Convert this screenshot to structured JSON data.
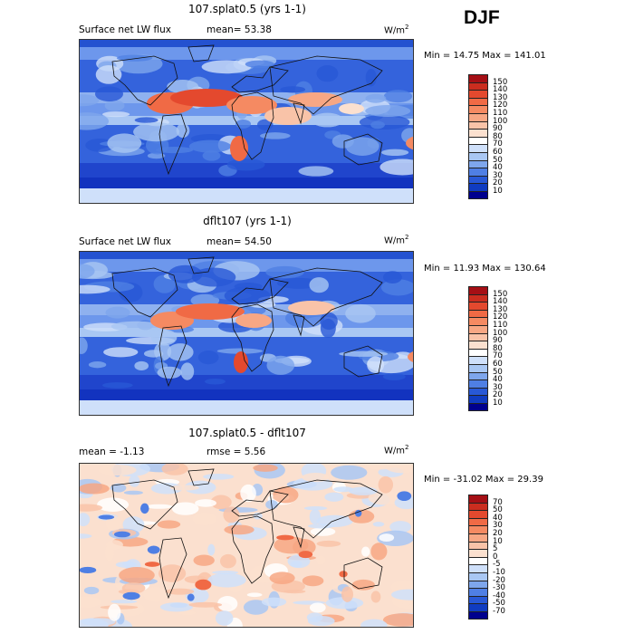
{
  "season": "DJF",
  "panels": [
    {
      "title": "107.splat0.5 (yrs 1-1)",
      "subtitle_left": "Surface net LW flux",
      "subtitle_right": "mean=  53.38",
      "units": "W/m",
      "units_exp": "2",
      "minmax": "Min =   14.75 Max = 141.01",
      "levels": [
        "150",
        "140",
        "130",
        "120",
        "110",
        "100",
        "90",
        "80",
        "70",
        "60",
        "50",
        "40",
        "30",
        "20",
        "10"
      ],
      "colors": [
        "#a50f15",
        "#cb2d1f",
        "#e4492e",
        "#f06a45",
        "#f58a62",
        "#f7a784",
        "#f9c3a8",
        "#fbe0cf",
        "#ffffff",
        "#cfe0fa",
        "#a9c7f3",
        "#7ea6ec",
        "#4f7fe4",
        "#2858d6",
        "#103cc1",
        "#00008e"
      ],
      "mapType": "abs"
    },
    {
      "title": "dflt107 (yrs 1-1)",
      "subtitle_left": "Surface net LW flux",
      "subtitle_right": "mean=  54.50",
      "units": "W/m",
      "units_exp": "2",
      "minmax": "Min =   11.93 Max = 130.64",
      "levels": [
        "150",
        "140",
        "130",
        "120",
        "110",
        "100",
        "90",
        "80",
        "70",
        "60",
        "50",
        "40",
        "30",
        "20",
        "10"
      ],
      "colors": [
        "#a50f15",
        "#cb2d1f",
        "#e4492e",
        "#f06a45",
        "#f58a62",
        "#f7a784",
        "#f9c3a8",
        "#fbe0cf",
        "#ffffff",
        "#cfe0fa",
        "#a9c7f3",
        "#7ea6ec",
        "#4f7fe4",
        "#2858d6",
        "#103cc1",
        "#00008e"
      ],
      "mapType": "abs"
    },
    {
      "title": "107.splat0.5 - dflt107",
      "subtitle_left": "mean =   -1.13",
      "subtitle_right": "rmse =    5.56",
      "units": "W/m",
      "units_exp": "2",
      "minmax": "Min = -31.02 Max =   29.39",
      "levels": [
        "70",
        "50",
        "40",
        "30",
        "20",
        "10",
        "5",
        "0",
        "-5",
        "-10",
        "-20",
        "-30",
        "-40",
        "-50",
        "-70"
      ],
      "colors": [
        "#a50f15",
        "#cb2d1f",
        "#e4492e",
        "#f06a45",
        "#f58a62",
        "#f7a784",
        "#f9c3a8",
        "#fbe0cf",
        "#ffffff",
        "#cfe0fa",
        "#a9c7f3",
        "#7ea6ec",
        "#4f7fe4",
        "#2858d6",
        "#103cc1",
        "#00008e"
      ],
      "mapType": "diff"
    }
  ]
}
